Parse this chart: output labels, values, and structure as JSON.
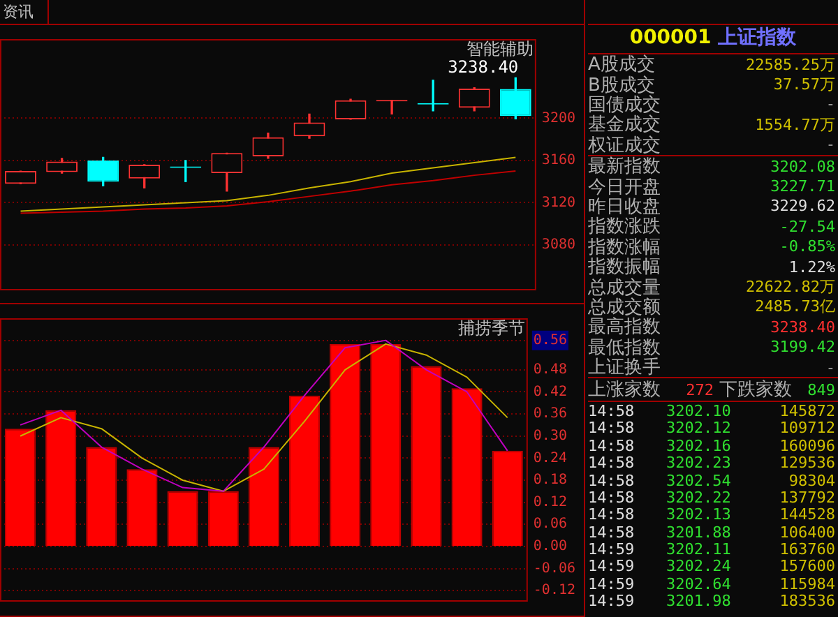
{
  "chart_data": [
    {
      "type": "candlestick",
      "title": "智能辅助",
      "categories": [
        null,
        null,
        null,
        null,
        null,
        null,
        null,
        null,
        null,
        null,
        null,
        null,
        null
      ],
      "ohlc": [
        [
          3138,
          3150,
          3138,
          3150
        ],
        [
          3149,
          3162,
          3148,
          3159
        ],
        [
          3160,
          3163,
          3136,
          3140
        ],
        [
          3143,
          3156,
          3134,
          3156
        ],
        [
          3154,
          3160,
          3140,
          3153
        ],
        [
          3148,
          3167,
          3131,
          3167
        ],
        [
          3164,
          3186,
          3162,
          3182
        ],
        [
          3183,
          3204,
          3181,
          3196
        ],
        [
          3199,
          3218,
          3199,
          3217
        ],
        [
          3216,
          3217,
          3204,
          3217
        ],
        [
          3214,
          3236,
          3207,
          3213
        ],
        [
          3210,
          3229,
          3207,
          3228
        ],
        [
          3227.71,
          3238.4,
          3199.42,
          3202.08
        ]
      ],
      "series": [
        {
          "type": "line",
          "color": "#c8b400",
          "values": [
            3112,
            3114,
            3116,
            3118,
            3120,
            3122,
            3127,
            3134,
            3140,
            3148,
            3153,
            3158,
            3163
          ]
        },
        {
          "type": "line",
          "color": "#c00000",
          "values": [
            3110,
            3111,
            3112,
            3114,
            3115,
            3117,
            3121,
            3126,
            3131,
            3137,
            3141,
            3146,
            3150
          ]
        }
      ],
      "ylim": [
        3037,
        3275
      ],
      "yticks": [
        3080,
        3120,
        3160,
        3200
      ],
      "grid": "y",
      "tick_labels": "y",
      "annotations": [
        "资讯",
        "3238.40"
      ]
    },
    {
      "type": "bar",
      "title": "捕捞季节",
      "categories": [
        null,
        null,
        null,
        null,
        null,
        null,
        null,
        null,
        null,
        null,
        null,
        null,
        null
      ],
      "series": [
        {
          "type": "bar",
          "color": "#ff0000",
          "values": [
            0.32,
            0.37,
            0.27,
            0.21,
            0.15,
            0.15,
            0.27,
            0.41,
            0.55,
            0.55,
            0.49,
            0.43,
            0.26
          ]
        },
        {
          "type": "line",
          "color": "#c000c0",
          "values": [
            0.33,
            0.37,
            0.27,
            0.21,
            0.16,
            0.15,
            0.27,
            0.41,
            0.54,
            0.56,
            0.48,
            0.42,
            0.26
          ]
        },
        {
          "type": "line",
          "color": "#c8b400",
          "values": [
            0.3,
            0.35,
            0.32,
            0.24,
            0.18,
            0.15,
            0.21,
            0.34,
            0.48,
            0.55,
            0.52,
            0.46,
            0.35
          ]
        }
      ],
      "ylim": [
        -0.15,
        0.62
      ],
      "yticks": [
        {
          "value": -0.12,
          "label": "-0.12"
        },
        {
          "value": -0.06,
          "label": "-0.06"
        },
        {
          "value": 0,
          "label": "0.00"
        },
        {
          "value": 0.06,
          "label": "0.06"
        },
        {
          "value": 0.12,
          "label": "0.12"
        },
        {
          "value": 0.18,
          "label": "0.18"
        },
        {
          "value": 0.24,
          "label": "0.24"
        },
        {
          "value": 0.3,
          "label": "0.30"
        },
        {
          "value": 0.36,
          "label": "0.36"
        },
        {
          "value": 0.42,
          "label": "0.42"
        },
        {
          "value": 0.48,
          "label": "0.48"
        },
        {
          "value": 0.56,
          "label": "0.56"
        }
      ],
      "grid": "y",
      "tick_labels": "y"
    },
    {
      "type": "other",
      "title": "000001 上证指数",
      "annotations": [
        "A股成交",
        "22585.25万",
        "B股成交",
        "37.57万",
        "国债成交",
        "-",
        "基金成交",
        "1554.77万",
        "权证成交",
        "-",
        "最新指数",
        "3202.08",
        "今日开盘",
        "3227.71",
        "昨日收盘",
        "3229.62",
        "指数涨跌",
        "-27.54",
        "指数涨幅",
        "-0.85%",
        "指数振幅",
        "1.22%",
        "总成交量",
        "22622.82万",
        "总成交额",
        "2485.73亿",
        "最高指数",
        "3238.40",
        "最低指数",
        "3199.42",
        "上证换手",
        "-",
        "上涨家数",
        "272",
        "下跌家数",
        "849",
        "14:58",
        "3202.10",
        "145872",
        "14:58",
        "3202.12",
        "109712",
        "14:58",
        "3202.16",
        "160096",
        "14:58",
        "3202.23",
        "129536",
        "14:58",
        "3202.54",
        "98304",
        "14:58",
        "3202.22",
        "137792",
        "14:58",
        "3202.13",
        "144528",
        "14:58",
        "3201.88",
        "106400",
        "14:59",
        "3202.11",
        "163760",
        "14:59",
        "3202.24",
        "157600",
        "14:59",
        "3202.64",
        "115984",
        "14:59",
        "3201.98",
        "183536"
      ]
    }
  ]
}
